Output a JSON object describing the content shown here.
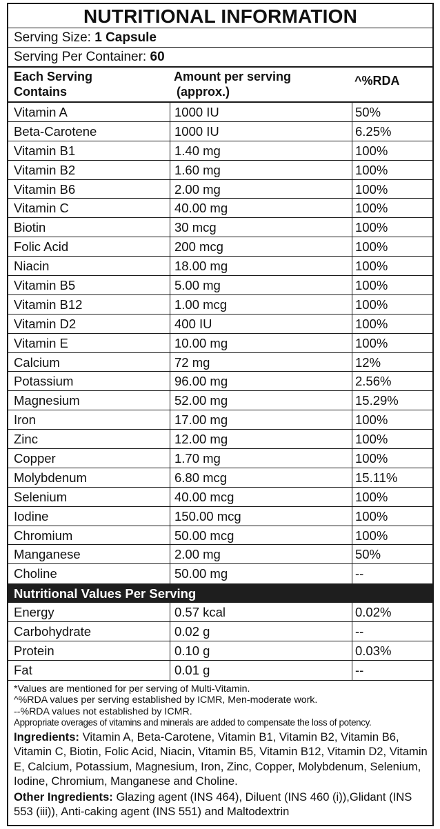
{
  "title": "NUTRITIONAL INFORMATION",
  "serving_size": {
    "label": "Serving Size:",
    "value": "1 Capsule"
  },
  "serving_per_container": {
    "label": "Serving Per Container:",
    "value": "60"
  },
  "headers": {
    "col1_line1": "Each Serving",
    "col1_line2": "Contains",
    "col2_line1": "Amount per serving",
    "col2_line2": "(approx.)",
    "col3": "^%RDA"
  },
  "nutrients": [
    {
      "name": "Vitamin A",
      "amount": "1000 IU",
      "rda": "50%"
    },
    {
      "name": "Beta-Carotene",
      "amount": "1000 IU",
      "rda": "6.25%"
    },
    {
      "name": "Vitamin B1",
      "amount": "1.40 mg",
      "rda": "100%"
    },
    {
      "name": "Vitamin B2",
      "amount": "1.60 mg",
      "rda": "100%"
    },
    {
      "name": "Vitamin B6",
      "amount": "2.00 mg",
      "rda": "100%"
    },
    {
      "name": "Vitamin C",
      "amount": "40.00 mg",
      "rda": "100%"
    },
    {
      "name": "Biotin",
      "amount": "30 mcg",
      "rda": "100%"
    },
    {
      "name": "Folic Acid",
      "amount": "200 mcg",
      "rda": "100%"
    },
    {
      "name": "Niacin",
      "amount": "18.00 mg",
      "rda": "100%"
    },
    {
      "name": "Vitamin B5",
      "amount": "5.00 mg",
      "rda": "100%"
    },
    {
      "name": "Vitamin B12",
      "amount": "1.00 mcg",
      "rda": "100%"
    },
    {
      "name": "Vitamin D2",
      "amount": "400 IU",
      "rda": "100%"
    },
    {
      "name": "Vitamin E",
      "amount": "10.00 mg",
      "rda": "100%"
    },
    {
      "name": "Calcium",
      "amount": "72 mg",
      "rda": "12%"
    },
    {
      "name": "Potassium",
      "amount": "96.00 mg",
      "rda": "2.56%"
    },
    {
      "name": "Magnesium",
      "amount": "52.00 mg",
      "rda": "15.29%"
    },
    {
      "name": "Iron",
      "amount": "17.00 mg",
      "rda": "100%"
    },
    {
      "name": "Zinc",
      "amount": "12.00 mg",
      "rda": "100%"
    },
    {
      "name": "Copper",
      "amount": "1.70 mg",
      "rda": "100%"
    },
    {
      "name": "Molybdenum",
      "amount": "6.80 mcg",
      "rda": "15.11%"
    },
    {
      "name": "Selenium",
      "amount": "40.00 mcg",
      "rda": "100%"
    },
    {
      "name": "Iodine",
      "amount": "150.00 mcg",
      "rda": "100%"
    },
    {
      "name": "Chromium",
      "amount": "50.00 mcg",
      "rda": "100%"
    },
    {
      "name": "Manganese",
      "amount": "2.00 mg",
      "rda": "50%"
    },
    {
      "name": "Choline",
      "amount": "50.00 mg",
      "rda": "--"
    }
  ],
  "values_section_title": "Nutritional Values Per Serving",
  "values": [
    {
      "name": "Energy",
      "amount": "0.57 kcal",
      "rda": "0.02%"
    },
    {
      "name": "Carbohydrate",
      "amount": "0.02 g",
      "rda": "--"
    },
    {
      "name": "Protein",
      "amount": "0.10 g",
      "rda": "0.03%"
    },
    {
      "name": "Fat",
      "amount": "0.01 g",
      "rda": "--"
    }
  ],
  "notes": [
    "*Values are mentioned for per serving of Multi-Vitamin.",
    "^%RDA values per serving established by ICMR, Men-moderate work.",
    "--%RDA values not established by ICMR.",
    "Appropriate overages of vitamins and minerals are added to compensate the loss of potency."
  ],
  "ingredients": {
    "label": "Ingredients:",
    "text": " Vitamin A, Beta-Carotene, Vitamin B1, Vitamin B2, Vitamin B6, Vitamin C, Biotin, Folic Acid, Niacin, Vitamin B5, Vitamin B12, Vitamin D2, Vitamin E, Calcium, Potassium, Magnesium, Iron, Zinc, Copper, Molybdenum, Selenium, Iodine, Chromium, Manganese and Choline."
  },
  "other_ingredients": {
    "label": "Other Ingredients:",
    "text": " Glazing agent (INS 464), Diluent (INS 460 (i)),Glidant (INS 553 (iii)), Anti-caking agent (INS 551) and Maltodextrin"
  }
}
